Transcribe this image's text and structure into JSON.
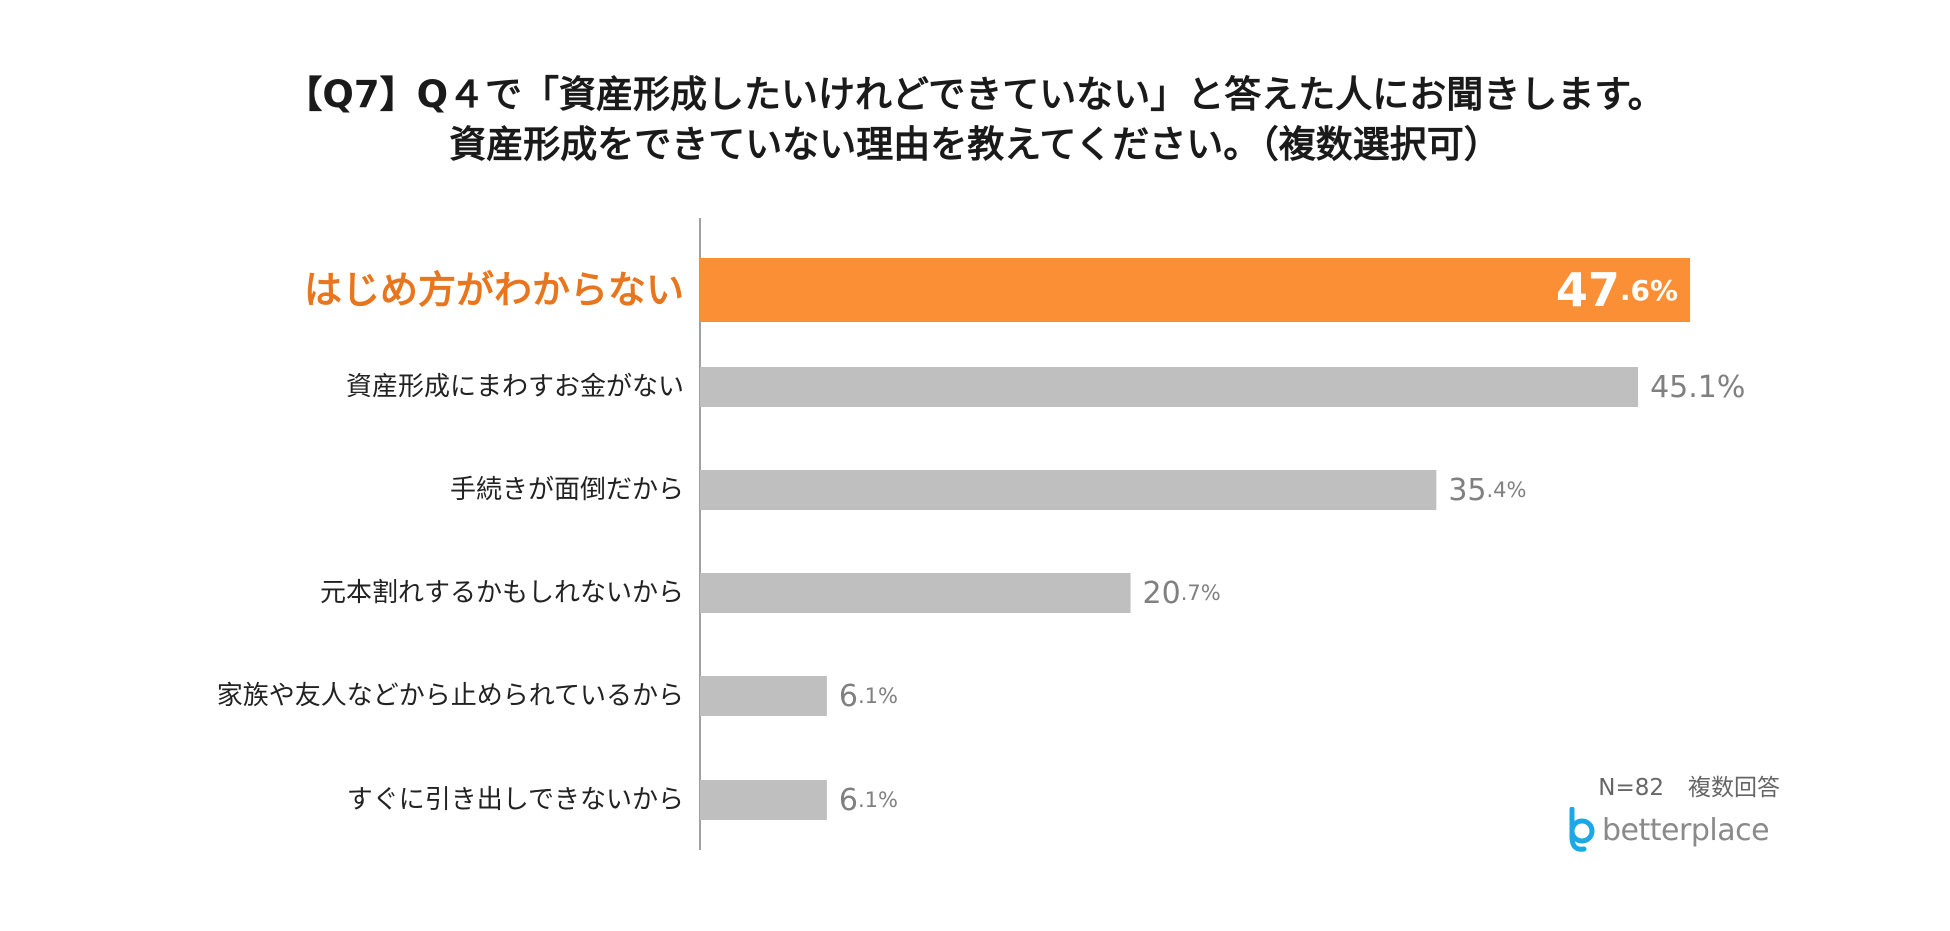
{
  "title": {
    "line1": "【Q7】Q４で「資産形成したいけれどできていない」と答えた人にお聞きします。",
    "line2": "資産形成をできていない理由を教えてください。（複数選択可）"
  },
  "chart_data": {
    "type": "bar",
    "orientation": "horizontal",
    "title": "【Q7】Q４で「資産形成したいけれどできていない」と答えた人にお聞きします。資産形成をできていない理由を教えてください。（複数選択可）",
    "categories": [
      "はじめ方がわからない",
      "資産形成にまわすお金がない",
      "手続きが面倒だから",
      "元本割れするかもしれないから",
      "家族や友人などから止められているから",
      "すぐに引き出しできないから"
    ],
    "values": [
      47.6,
      45.1,
      35.4,
      20.7,
      6.1,
      6.1
    ],
    "value_labels": [
      "47.6%",
      "45.1%",
      "35.4%",
      "20.7%",
      "6.1%",
      "6.1%"
    ],
    "highlight_index": 0,
    "xlim": [
      0,
      50
    ],
    "unit": "%",
    "grid": false
  },
  "note": {
    "sample": "N=82",
    "type": "複数回答"
  },
  "logo": {
    "text": "betterplace",
    "mark": "b"
  },
  "colors": {
    "highlight_bar": "#FB8F35",
    "highlight_label": "#E8761E",
    "bar": "#BFBFBF",
    "value_label": "#808080",
    "axis": "#808080",
    "logo_mark": "#1BA8E6",
    "logo_text": "#8A8A8A"
  }
}
